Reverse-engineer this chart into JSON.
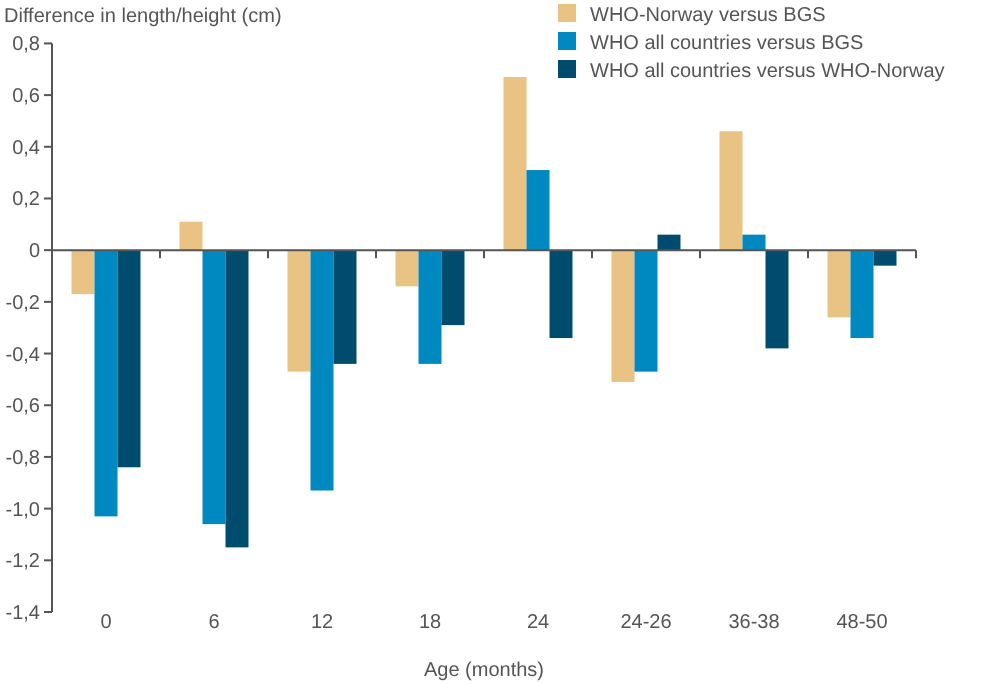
{
  "chart_data": {
    "type": "bar",
    "ylabel": "Difference in length/height (cm)",
    "xlabel": "Age (months)",
    "categories": [
      "0",
      "6",
      "12",
      "18",
      "24",
      "24-26",
      "36-38",
      "48-50"
    ],
    "series": [
      {
        "name": "WHO-Norway versus BGS",
        "color": "#e9c384",
        "values": [
          -0.17,
          0.11,
          -0.47,
          -0.14,
          0.67,
          -0.51,
          0.46,
          -0.26
        ]
      },
      {
        "name": "WHO all countries versus  BGS",
        "color": "#0088c0",
        "values": [
          -1.03,
          -1.06,
          -0.93,
          -0.44,
          0.31,
          -0.47,
          0.06,
          -0.34
        ]
      },
      {
        "name": "WHO all countries versus  WHO-Norway",
        "color": "#004c6e",
        "values": [
          -0.84,
          -1.15,
          -0.44,
          -0.29,
          -0.34,
          0.06,
          -0.38,
          -0.06
        ]
      }
    ],
    "ylim": [
      -1.4,
      0.8
    ],
    "yticks": [
      {
        "value": -1.4,
        "label": "-1,4"
      },
      {
        "value": -1.2,
        "label": "-1,2"
      },
      {
        "value": -1,
        "label": "-1,0"
      },
      {
        "value": -0.8,
        "label": "-0,8"
      },
      {
        "value": -0.6,
        "label": "-0,6"
      },
      {
        "value": -0.4,
        "label": "-0,4"
      },
      {
        "value": -0.2,
        "label": "-0,2"
      },
      0,
      {
        "value": 0.2,
        "label": "0,2"
      },
      {
        "value": 0.4,
        "label": "0,4"
      },
      {
        "value": 0.6,
        "label": "0,6"
      },
      {
        "value": 0.8,
        "label": "0,8"
      }
    ],
    "legend": "top right"
  }
}
